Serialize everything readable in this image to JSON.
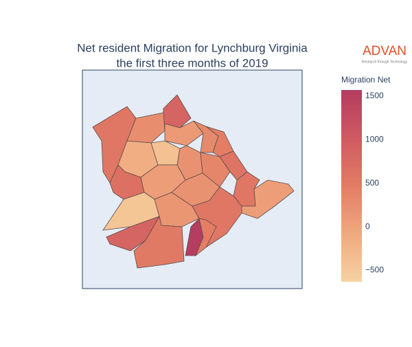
{
  "chart_data": {
    "type": "choropleth",
    "title": [
      "Net resident Migration for Lynchburg Virginia",
      "the first three months of 2019"
    ],
    "logo": {
      "name": "ADVAN",
      "tagline": "Research through Technology"
    },
    "colorbar_title": "Migration Net",
    "clim": [
      -630,
      1570
    ],
    "cticks": [
      1500,
      1000,
      500,
      0,
      {
        "value": -500,
        "label": "−500"
      }
    ],
    "colorscale": [
      "#f6d2a0",
      "#f0a97e",
      "#e27c64",
      "#cf5a62",
      "#b43c60"
    ],
    "values": [
      550,
      850,
      250,
      100,
      300,
      450,
      -150,
      -400,
      200,
      350,
      600,
      650,
      50,
      200,
      -450,
      150,
      550,
      50,
      550,
      850,
      500,
      1550,
      450
    ]
  }
}
